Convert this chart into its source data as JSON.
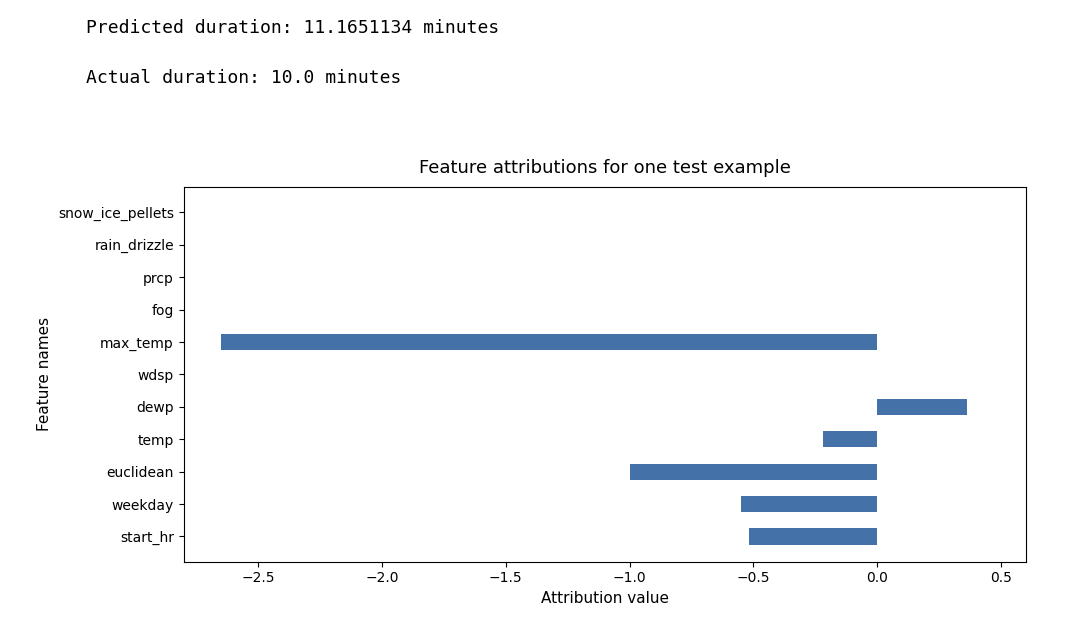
{
  "title": "Feature attributions for one test example",
  "xlabel": "Attribution value",
  "ylabel": "Feature names",
  "suptitle_line1": "Predicted duration: 11.1651134 minutes",
  "suptitle_line2": "Actual duration: 10.0 minutes",
  "features": [
    "start_hr",
    "weekday",
    "euclidean",
    "temp",
    "dewp",
    "wdsp",
    "max_temp",
    "fog",
    "prcp",
    "rain_drizzle",
    "snow_ice_pellets"
  ],
  "attributions": [
    -0.52,
    -0.55,
    -1.0,
    -0.22,
    0.36,
    0.0,
    -2.65,
    0.0,
    0.0,
    0.0,
    0.0
  ],
  "bar_color": "#4472a8",
  "xlim": [
    -2.8,
    0.6
  ],
  "xticks": [
    -2.5,
    -2.0,
    -1.5,
    -1.0,
    -0.5,
    0.0,
    0.5
  ],
  "figsize": [
    10.8,
    6.24
  ],
  "dpi": 100,
  "title_fontsize": 13,
  "axis_label_fontsize": 11,
  "tick_fontsize": 10,
  "suptitle_fontsize": 13,
  "suptitle_fontfamily": "monospace",
  "bar_height": 0.5
}
